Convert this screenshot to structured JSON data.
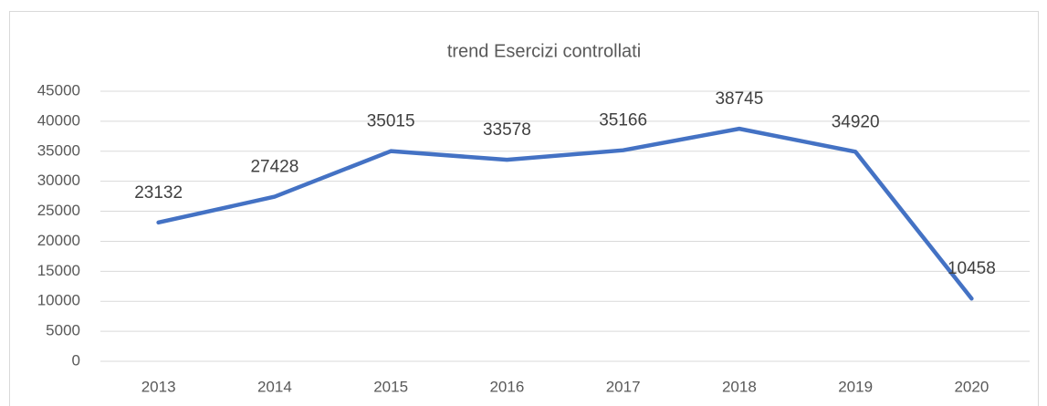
{
  "chart_data": {
    "type": "line",
    "title": "trend Esercizi controllati",
    "categories": [
      "2013",
      "2014",
      "2015",
      "2016",
      "2017",
      "2018",
      "2019",
      "2020"
    ],
    "series": [
      {
        "name": "Esercizi controllati",
        "color": "#4472c4",
        "values": [
          23132,
          27428,
          35015,
          33578,
          35166,
          38745,
          34920,
          10458
        ]
      }
    ],
    "ylim": [
      0,
      45000
    ],
    "yticks": [
      0,
      5000,
      10000,
      15000,
      20000,
      25000,
      30000,
      35000,
      40000,
      45000
    ],
    "grid": true,
    "data_labels": true,
    "legend": false
  }
}
